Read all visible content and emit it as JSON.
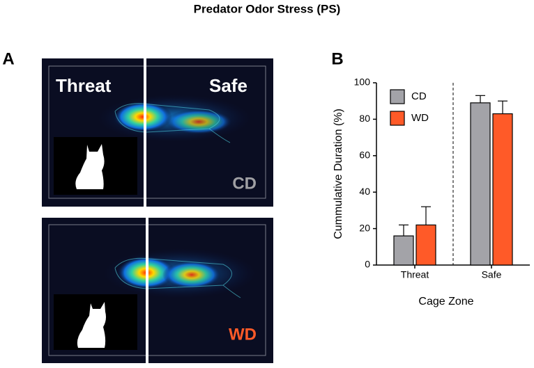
{
  "title": "Predator Odor Stress (PS)",
  "panel_a": {
    "label": "A",
    "zone_left": "Threat",
    "zone_right": "Safe",
    "groups": [
      "CD",
      "WD"
    ]
  },
  "chart_data": {
    "type": "bar",
    "panel_label": "B",
    "categories": [
      "Threat",
      "Safe"
    ],
    "series": [
      {
        "name": "CD",
        "color": "#a3a3a8",
        "values": [
          16,
          89
        ],
        "errors": [
          6,
          4
        ]
      },
      {
        "name": "WD",
        "color": "#ff5a28",
        "values": [
          22,
          83
        ],
        "errors": [
          10,
          7
        ]
      }
    ],
    "ylabel": "Cummulative Duration (%)",
    "xlabel": "Cage Zone",
    "ylim": [
      0,
      100
    ],
    "yticks": [
      0,
      20,
      40,
      60,
      80,
      100
    ],
    "legend": "upper left"
  }
}
